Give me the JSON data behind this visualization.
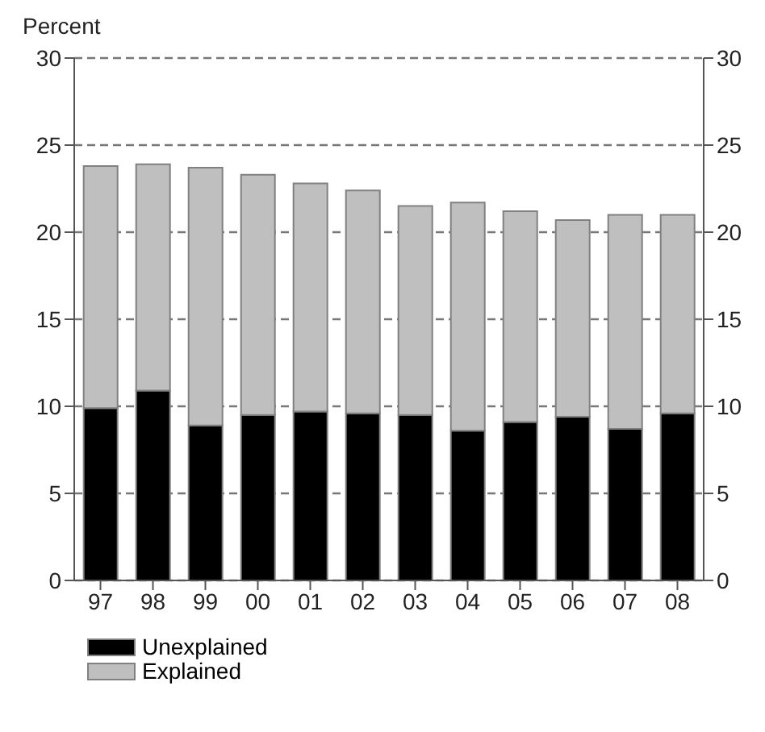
{
  "chart_data": {
    "type": "bar",
    "annotations": [
      "Percent"
    ],
    "stacked": true,
    "categories": [
      "97",
      "98",
      "99",
      "00",
      "01",
      "02",
      "03",
      "04",
      "05",
      "06",
      "07",
      "08"
    ],
    "series": [
      {
        "name": "Unexplained",
        "color": "#000000",
        "values": [
          9.9,
          10.9,
          8.9,
          9.5,
          9.7,
          9.6,
          9.5,
          8.6,
          9.1,
          9.4,
          8.7,
          9.6
        ]
      },
      {
        "name": "Explained",
        "color": "#bfbfbf",
        "values": [
          13.9,
          13.0,
          14.8,
          13.8,
          13.1,
          12.8,
          12.0,
          13.1,
          12.1,
          11.3,
          12.3,
          11.4
        ]
      }
    ],
    "ylim": [
      0,
      30
    ],
    "yticks": [
      0,
      5,
      10,
      15,
      20,
      25,
      30
    ],
    "y2lim": [
      0,
      30
    ],
    "y2ticks": [
      0,
      5,
      10,
      15,
      20,
      25,
      30
    ],
    "grid": "y",
    "legend": "bottom left"
  }
}
